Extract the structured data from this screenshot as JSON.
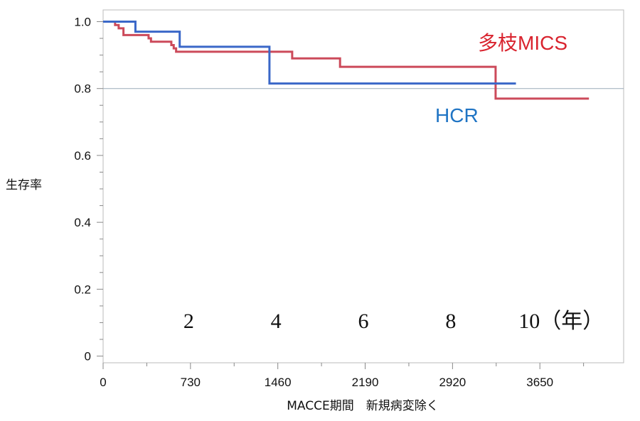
{
  "chart_data": {
    "type": "line",
    "step": true,
    "xlabel": "MACCE期間　新規病変除く",
    "ylabel": "生存率",
    "xlim": [
      0,
      4350
    ],
    "ylim": [
      -0.02,
      1.035
    ],
    "x_ticks": [
      0,
      730,
      1460,
      2190,
      2920,
      3650
    ],
    "y_ticks": [
      0,
      0.2,
      0.4,
      0.6,
      0.8,
      1.0
    ],
    "y_tick_labels": [
      "0",
      "0.2",
      "0.4",
      "0.6",
      "0.8",
      "1.0"
    ],
    "reference_line_y": 0.8,
    "year_labels": [
      {
        "text": "2",
        "x": 730
      },
      {
        "text": "4",
        "x": 1460
      },
      {
        "text": "6",
        "x": 2190
      },
      {
        "text": "8",
        "x": 2920
      },
      {
        "text": "10（年）",
        "x": 3650
      }
    ],
    "grid": false,
    "series": [
      {
        "name": "多枝MICS",
        "color": "#cc4a5a",
        "label_color": "#d9232e",
        "points": [
          [
            0,
            1.0
          ],
          [
            100,
            0.99
          ],
          [
            130,
            0.98
          ],
          [
            170,
            0.96
          ],
          [
            380,
            0.95
          ],
          [
            400,
            0.94
          ],
          [
            570,
            0.93
          ],
          [
            590,
            0.92
          ],
          [
            610,
            0.91
          ],
          [
            1580,
            0.89
          ],
          [
            1980,
            0.865
          ],
          [
            3280,
            0.77
          ],
          [
            4060,
            0.77
          ]
        ]
      },
      {
        "name": "HCR",
        "color": "#3a67c8",
        "label_color": "#1f74c4",
        "points": [
          [
            0,
            1.0
          ],
          [
            270,
            0.97
          ],
          [
            640,
            0.925
          ],
          [
            1390,
            0.815
          ],
          [
            3450,
            0.815
          ]
        ]
      }
    ],
    "colors": {
      "axis": "#888888",
      "reference_line": "#9aaab8",
      "frame": "#bbbbbb"
    }
  }
}
